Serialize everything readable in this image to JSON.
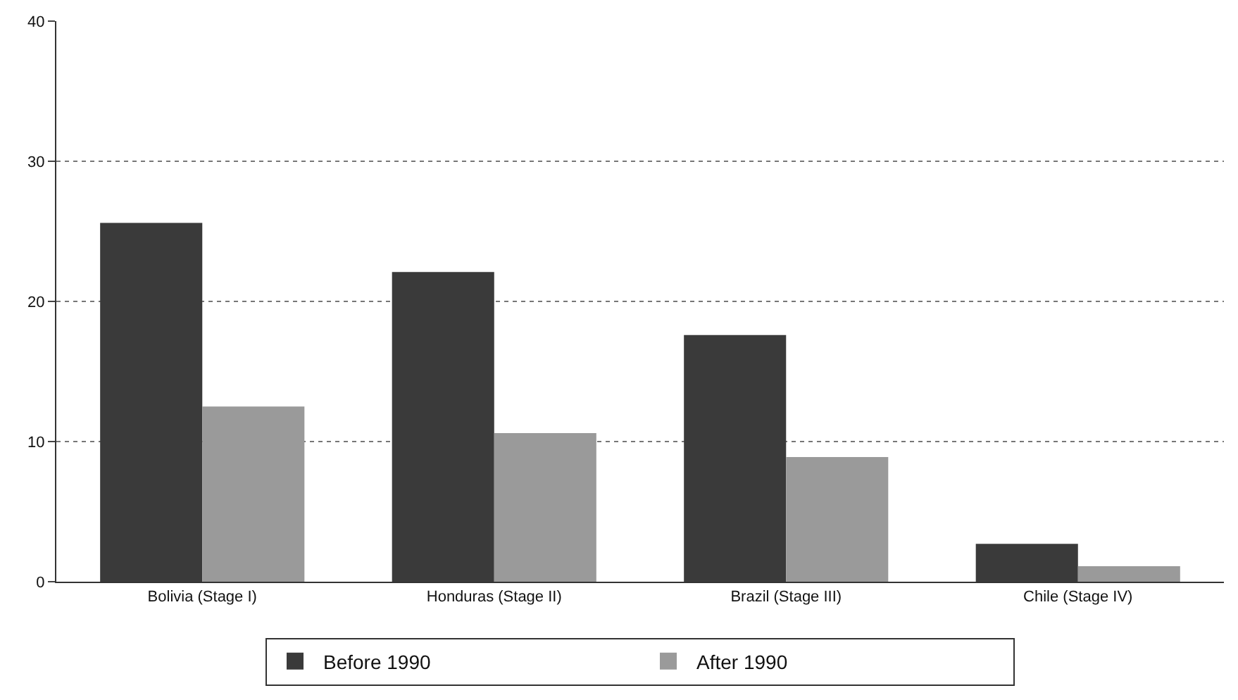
{
  "chart_data": {
    "type": "bar",
    "categories": [
      "Bolivia (Stage I)",
      "Honduras (Stage II)",
      "Brazil (Stage III)",
      "Chile (Stage IV)"
    ],
    "series": [
      {
        "name": "Before 1990",
        "color": "#3a3a3a",
        "values": [
          25.6,
          22.1,
          17.6,
          2.7
        ]
      },
      {
        "name": "After 1990",
        "color": "#9a9a9a",
        "values": [
          12.5,
          10.6,
          8.9,
          1.1
        ]
      }
    ],
    "ylim": [
      0,
      40
    ],
    "yticks": [
      0,
      10,
      20,
      30,
      40
    ],
    "grid": "y",
    "legend": "bottom"
  }
}
